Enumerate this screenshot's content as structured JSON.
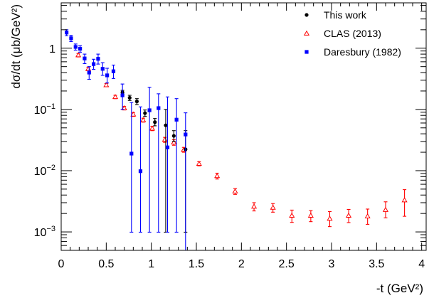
{
  "chart_data": {
    "type": "scatter",
    "xlabel": "-t (GeV²)",
    "ylabel": "dσ/dt (μb/GeV²)",
    "xlim": [
      0,
      4.05
    ],
    "ylim": [
      0.0005,
      5.5
    ],
    "yscale": "log",
    "grid": false,
    "legend": "top-right",
    "x_ticks": [
      {
        "value": 0,
        "label": "0"
      },
      {
        "value": 0.5,
        "label": "0.5"
      },
      {
        "value": 1,
        "label": "1"
      },
      {
        "value": 1.5,
        "label": "1.5"
      },
      {
        "value": 2,
        "label": "2"
      },
      {
        "value": 2.5,
        "label": "2.5"
      },
      {
        "value": 3,
        "label": "3"
      },
      {
        "value": 3.5,
        "label": "3.5"
      },
      {
        "value": 4,
        "label": "4"
      }
    ],
    "y_ticks": [
      {
        "value": 1,
        "base": "1",
        "exp": ""
      },
      {
        "value": 0.1,
        "base": "10",
        "exp": "−1"
      },
      {
        "value": 0.01,
        "base": "10",
        "exp": "−2"
      },
      {
        "value": 0.001,
        "base": "10",
        "exp": "−3"
      }
    ],
    "series": [
      {
        "name": "This work",
        "color": "#000000",
        "marker": "circle",
        "points": [
          {
            "x": 0.68,
            "y": 0.19,
            "lo": 0.175,
            "hi": 0.205
          },
          {
            "x": 0.76,
            "y": 0.155,
            "lo": 0.14,
            "hi": 0.17
          },
          {
            "x": 0.84,
            "y": 0.135,
            "lo": 0.12,
            "hi": 0.15
          },
          {
            "x": 0.93,
            "y": 0.087,
            "lo": 0.077,
            "hi": 0.098
          },
          {
            "x": 1.04,
            "y": 0.062,
            "lo": 0.054,
            "hi": 0.071
          },
          {
            "x": 1.16,
            "y": 0.055,
            "lo": 0.00099,
            "hi": 0.1
          },
          {
            "x": 1.25,
            "y": 0.037,
            "lo": 0.03,
            "hi": 0.045
          },
          {
            "x": 1.38,
            "y": 0.0223,
            "lo": 0.00099,
            "hi": 0.045
          }
        ]
      },
      {
        "name": "CLAS (2013)",
        "color": "#ff0000",
        "marker": "triangle-open",
        "points": [
          {
            "x": 0.19,
            "y": 0.77,
            "lo": 0.72,
            "hi": 0.82
          },
          {
            "x": 0.3,
            "y": 0.46,
            "lo": 0.43,
            "hi": 0.49
          },
          {
            "x": 0.5,
            "y": 0.25,
            "lo": 0.235,
            "hi": 0.265
          },
          {
            "x": 0.6,
            "y": 0.16,
            "lo": 0.15,
            "hi": 0.17
          },
          {
            "x": 0.7,
            "y": 0.105,
            "lo": 0.098,
            "hi": 0.112
          },
          {
            "x": 0.8,
            "y": 0.083,
            "lo": 0.077,
            "hi": 0.089
          },
          {
            "x": 0.91,
            "y": 0.067,
            "lo": 0.062,
            "hi": 0.072
          },
          {
            "x": 1.01,
            "y": 0.049,
            "lo": 0.045,
            "hi": 0.053
          },
          {
            "x": 1.15,
            "y": 0.032,
            "lo": 0.029,
            "hi": 0.035
          },
          {
            "x": 1.25,
            "y": 0.029,
            "lo": 0.026,
            "hi": 0.032
          },
          {
            "x": 1.36,
            "y": 0.022,
            "lo": 0.02,
            "hi": 0.024
          },
          {
            "x": 1.53,
            "y": 0.013,
            "lo": 0.012,
            "hi": 0.014
          },
          {
            "x": 1.73,
            "y": 0.0082,
            "lo": 0.0073,
            "hi": 0.0091
          },
          {
            "x": 1.93,
            "y": 0.0046,
            "lo": 0.0041,
            "hi": 0.0051
          },
          {
            "x": 2.14,
            "y": 0.0026,
            "lo": 0.0022,
            "hi": 0.003
          },
          {
            "x": 2.35,
            "y": 0.0025,
            "lo": 0.0021,
            "hi": 0.0029
          },
          {
            "x": 2.56,
            "y": 0.00185,
            "lo": 0.00143,
            "hi": 0.00227
          },
          {
            "x": 2.77,
            "y": 0.00185,
            "lo": 0.00147,
            "hi": 0.00223
          },
          {
            "x": 2.98,
            "y": 0.00165,
            "lo": 0.00122,
            "hi": 0.00215
          },
          {
            "x": 3.19,
            "y": 0.00185,
            "lo": 0.00142,
            "hi": 0.00233
          },
          {
            "x": 3.4,
            "y": 0.0018,
            "lo": 0.00133,
            "hi": 0.00236
          },
          {
            "x": 3.6,
            "y": 0.0023,
            "lo": 0.0017,
            "hi": 0.0031
          },
          {
            "x": 3.81,
            "y": 0.0033,
            "lo": 0.0018,
            "hi": 0.0049
          }
        ]
      },
      {
        "name": "Daresbury (1982)",
        "color": "#0000ff",
        "marker": "square",
        "points": [
          {
            "x": 0.06,
            "y": 1.8,
            "lo": 1.6,
            "hi": 2.0
          },
          {
            "x": 0.11,
            "y": 1.45,
            "lo": 1.28,
            "hi": 1.62
          },
          {
            "x": 0.16,
            "y": 1.05,
            "lo": 0.93,
            "hi": 1.17
          },
          {
            "x": 0.21,
            "y": 0.98,
            "lo": 0.86,
            "hi": 1.1
          },
          {
            "x": 0.26,
            "y": 0.68,
            "lo": 0.56,
            "hi": 0.8
          },
          {
            "x": 0.31,
            "y": 0.4,
            "lo": 0.31,
            "hi": 0.5
          },
          {
            "x": 0.36,
            "y": 0.55,
            "lo": 0.45,
            "hi": 0.66
          },
          {
            "x": 0.41,
            "y": 0.67,
            "lo": 0.55,
            "hi": 0.8
          },
          {
            "x": 0.46,
            "y": 0.46,
            "lo": 0.36,
            "hi": 0.58
          },
          {
            "x": 0.51,
            "y": 0.36,
            "lo": 0.27,
            "hi": 0.47
          },
          {
            "x": 0.58,
            "y": 0.42,
            "lo": 0.32,
            "hi": 0.53
          },
          {
            "x": 0.68,
            "y": 0.17,
            "lo": 0.1,
            "hi": 0.26
          },
          {
            "x": 0.78,
            "y": 0.019,
            "lo": 0.00099,
            "hi": 0.13
          },
          {
            "x": 0.88,
            "y": 0.0098,
            "lo": 0.00099,
            "hi": 0.11
          },
          {
            "x": 0.98,
            "y": 0.097,
            "lo": 0.00099,
            "hi": 0.23
          },
          {
            "x": 1.08,
            "y": 0.105,
            "lo": 0.00099,
            "hi": 0.18
          },
          {
            "x": 1.18,
            "y": 0.024,
            "lo": 0.00099,
            "hi": 0.16
          },
          {
            "x": 1.28,
            "y": 0.068,
            "lo": 0.00099,
            "hi": 0.15
          },
          {
            "x": 1.38,
            "y": 0.039,
            "lo": 0.0005,
            "hi": 0.088
          }
        ]
      }
    ]
  }
}
